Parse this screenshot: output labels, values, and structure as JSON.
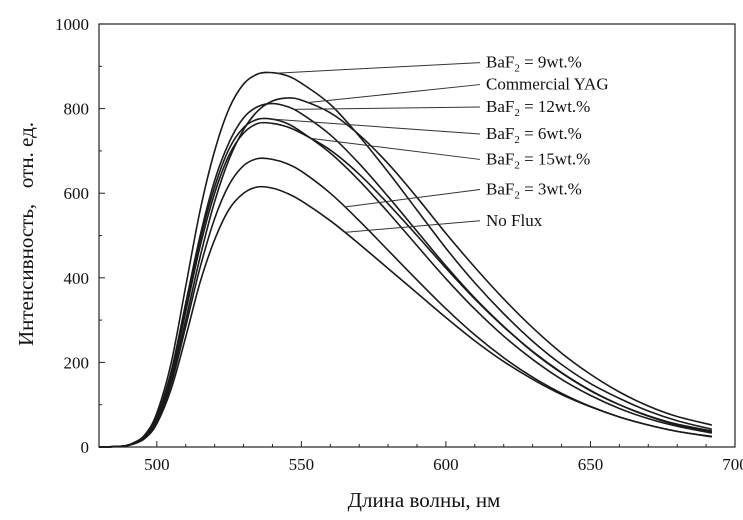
{
  "chart_data": {
    "type": "line",
    "title": "",
    "xlabel": "Длина волны, нм",
    "ylabel": "Интенсивность,   отн. ед.",
    "xlim": [
      480,
      700
    ],
    "ylim": [
      0,
      1000
    ],
    "xticks": [
      500,
      550,
      600,
      650,
      700
    ],
    "yticks": [
      0,
      200,
      400,
      600,
      800,
      1000
    ],
    "grid": false,
    "legend_placement": "right, with leader lines to curves",
    "series": [
      {
        "name": "BaF2 = 9wt.%",
        "label_prefix": "BaF",
        "label_sub": "2",
        "label_suffix": " =  9wt.%",
        "leader_x": 541,
        "x": [
          480,
          488,
          492,
          496,
          500,
          505,
          510,
          515,
          520,
          525,
          530,
          535,
          540,
          545,
          550,
          560,
          570,
          580,
          590,
          600,
          610,
          620,
          630,
          640,
          650,
          660,
          670,
          680,
          692
        ],
        "y": [
          0,
          2,
          10,
          30,
          80,
          200,
          380,
          560,
          700,
          800,
          858,
          882,
          885,
          878,
          860,
          810,
          735,
          650,
          560,
          470,
          388,
          315,
          250,
          195,
          150,
          115,
          85,
          62,
          42
        ]
      },
      {
        "name": "Commercial YAG",
        "label": "Commercial YAG",
        "leader_x": 552,
        "x": [
          480,
          488,
          492,
          496,
          500,
          505,
          510,
          515,
          520,
          525,
          530,
          535,
          540,
          545,
          550,
          560,
          570,
          580,
          590,
          600,
          610,
          620,
          630,
          640,
          650,
          660,
          670,
          680,
          692
        ],
        "y": [
          0,
          2,
          8,
          25,
          65,
          160,
          300,
          450,
          580,
          680,
          750,
          795,
          818,
          825,
          820,
          790,
          738,
          670,
          590,
          505,
          425,
          350,
          282,
          222,
          172,
          130,
          97,
          72,
          52
        ]
      },
      {
        "name": "BaF2 = 12wt.%",
        "label_prefix": "BaF",
        "label_sub": "2",
        "label_suffix": " = 12wt.%",
        "leader_x": 547,
        "x": [
          480,
          488,
          492,
          496,
          500,
          505,
          510,
          515,
          520,
          525,
          530,
          535,
          540,
          545,
          550,
          560,
          570,
          580,
          590,
          600,
          610,
          620,
          630,
          640,
          650,
          660,
          670,
          680,
          692
        ],
        "y": [
          0,
          2,
          9,
          28,
          72,
          180,
          340,
          500,
          630,
          720,
          778,
          805,
          812,
          805,
          788,
          738,
          670,
          592,
          510,
          428,
          352,
          285,
          225,
          175,
          133,
          100,
          74,
          54,
          38
        ]
      },
      {
        "name": "BaF2 = 6wt.%",
        "label_prefix": "BaF",
        "label_sub": "2",
        "label_suffix": " =  6wt.%",
        "leader_x": 540,
        "x": [
          480,
          488,
          492,
          496,
          500,
          505,
          510,
          515,
          520,
          525,
          530,
          535,
          540,
          545,
          550,
          560,
          570,
          580,
          590,
          600,
          610,
          620,
          630,
          640,
          650,
          660,
          670,
          680,
          692
        ],
        "y": [
          0,
          2,
          9,
          27,
          70,
          175,
          330,
          490,
          615,
          705,
          755,
          775,
          775,
          765,
          745,
          695,
          630,
          555,
          476,
          398,
          326,
          262,
          207,
          160,
          122,
          91,
          67,
          49,
          33
        ]
      },
      {
        "name": "BaF2 = 15wt.%",
        "label_prefix": "BaF",
        "label_sub": "2",
        "label_suffix": " = 15wt.%",
        "leader_x": 553,
        "x": [
          480,
          488,
          492,
          496,
          500,
          505,
          510,
          515,
          520,
          525,
          530,
          535,
          540,
          545,
          550,
          560,
          570,
          580,
          590,
          600,
          610,
          620,
          630,
          640,
          650,
          660,
          670,
          680,
          692
        ],
        "y": [
          0,
          2,
          8,
          26,
          68,
          170,
          320,
          475,
          600,
          690,
          742,
          765,
          765,
          757,
          742,
          702,
          645,
          575,
          500,
          423,
          350,
          284,
          226,
          176,
          134,
          100,
          73,
          52,
          35
        ]
      },
      {
        "name": "BaF2 = 3wt.%",
        "label_prefix": "BaF",
        "label_sub": "2",
        "label_suffix": " =  3wt.%",
        "leader_x": 565,
        "x": [
          480,
          488,
          492,
          496,
          500,
          505,
          510,
          515,
          520,
          525,
          530,
          535,
          540,
          545,
          550,
          560,
          570,
          580,
          590,
          600,
          610,
          620,
          630,
          640,
          650,
          660,
          670,
          680,
          692
        ],
        "y": [
          0,
          2,
          8,
          23,
          60,
          150,
          285,
          425,
          540,
          620,
          665,
          682,
          680,
          670,
          652,
          600,
          535,
          465,
          395,
          327,
          265,
          211,
          165,
          127,
          96,
          71,
          52,
          37,
          25
        ]
      },
      {
        "name": "No Flux",
        "label": "No Flux",
        "leader_x": 565,
        "x": [
          480,
          488,
          492,
          496,
          500,
          505,
          510,
          515,
          520,
          525,
          530,
          535,
          540,
          545,
          550,
          560,
          570,
          580,
          590,
          600,
          610,
          620,
          630,
          640,
          650,
          660,
          670,
          680,
          692
        ],
        "y": [
          0,
          2,
          7,
          21,
          55,
          138,
          260,
          390,
          490,
          562,
          600,
          615,
          612,
          600,
          582,
          535,
          480,
          422,
          364,
          306,
          251,
          202,
          160,
          124,
          95,
          71,
          52,
          37,
          24
        ]
      }
    ],
    "legend_label_y": [
      897,
      845,
      792,
      728,
      668,
      597,
      523
    ]
  }
}
